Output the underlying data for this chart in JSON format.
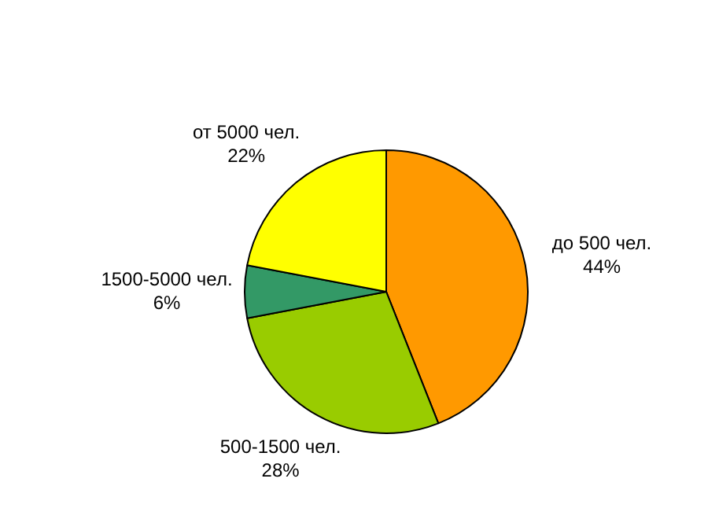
{
  "chart_data": {
    "type": "pie",
    "categories": [
      "до 500 чел.",
      "500-1500 чел.",
      "1500-5000 чел.",
      "от 5000 чел."
    ],
    "values": [
      44,
      28,
      6,
      22
    ],
    "colors": [
      "#ff9900",
      "#99cc00",
      "#339966",
      "#ffff00"
    ],
    "value_labels": [
      "44%",
      "28%",
      "6%",
      "22%"
    ]
  }
}
